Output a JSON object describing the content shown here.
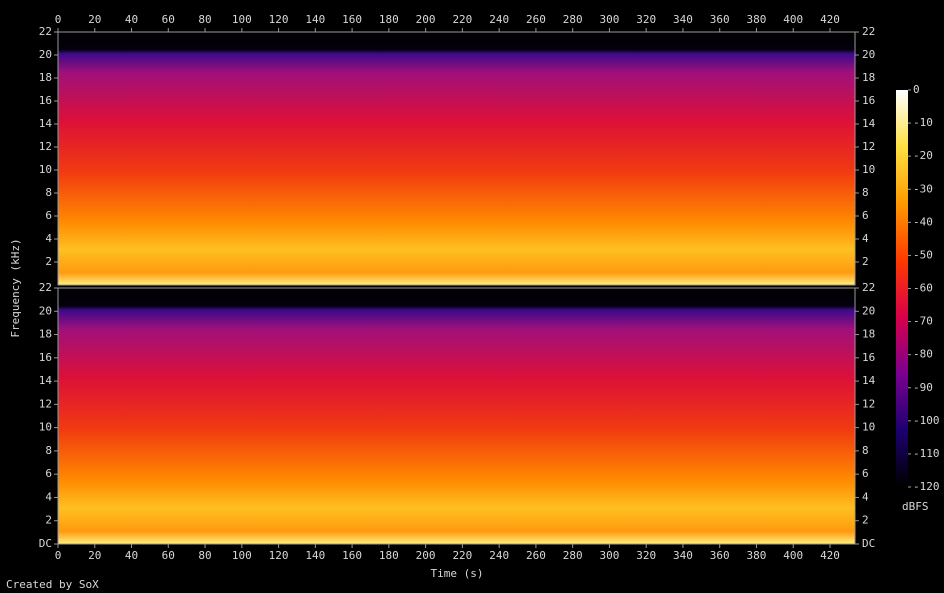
{
  "chart_data": {
    "type": "spectrogram",
    "x_label": "Time (s)",
    "y_label": "Frequency (kHz)",
    "credit": "Created by SoX",
    "xlim": [
      0,
      433.6
    ],
    "xticks": [
      0,
      20,
      40,
      60,
      80,
      100,
      120,
      140,
      160,
      180,
      200,
      220,
      240,
      260,
      280,
      300,
      320,
      340,
      360,
      380,
      400,
      420
    ],
    "panels": [
      {
        "ylim": [
          0,
          22
        ],
        "yticks": [
          2,
          4,
          6,
          8,
          10,
          12,
          14,
          16,
          18,
          20,
          22
        ]
      },
      {
        "ylim": [
          0,
          22
        ],
        "yticks": [
          {
            "value": 0,
            "label": "DC"
          },
          2,
          4,
          6,
          8,
          10,
          12,
          14,
          16,
          18,
          20,
          22
        ]
      }
    ],
    "colorbar": {
      "label": "dBFS",
      "ylim": [
        -120,
        0
      ],
      "yticks": [
        0,
        -10,
        -20,
        -30,
        -40,
        -50,
        -60,
        -70,
        -80,
        -90,
        -100,
        -110,
        -120
      ],
      "colormap": [
        "#000000",
        "#1c0070",
        "#7a0090",
        "#d8004a",
        "#ff3a00",
        "#ff9a00",
        "#ffe040",
        "#ffffff"
      ]
    }
  }
}
